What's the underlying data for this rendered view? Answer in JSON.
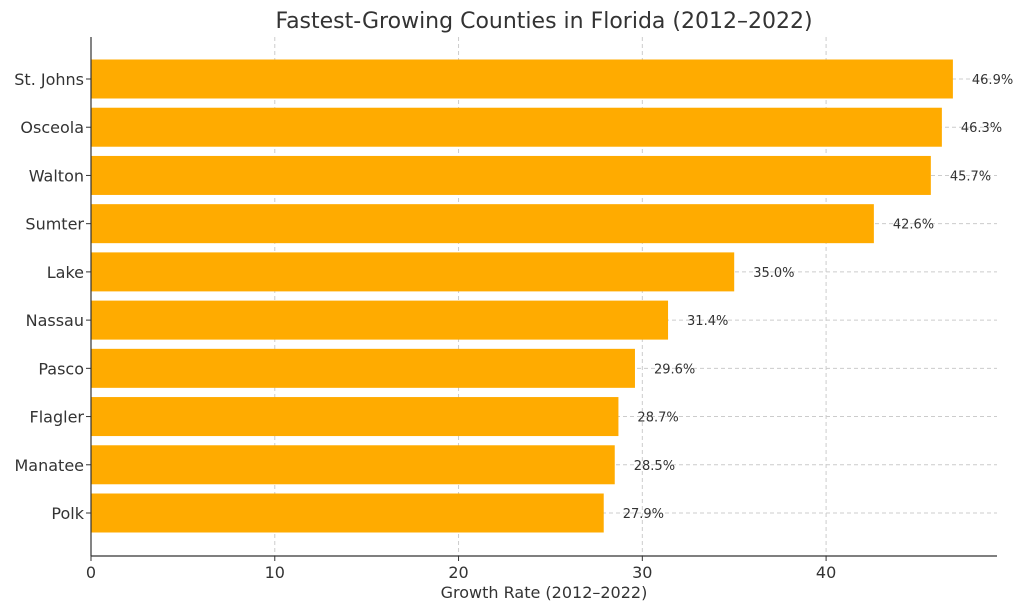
{
  "chart_data": {
    "type": "bar",
    "orientation": "horizontal",
    "title": "Fastest-Growing Counties in Florida (2012–2022)",
    "xlabel": "Growth Rate (2012–2022)",
    "ylabel": "",
    "categories": [
      "St. Johns",
      "Osceola",
      "Walton",
      "Sumter",
      "Lake",
      "Nassau",
      "Pasco",
      "Flagler",
      "Manatee",
      "Polk"
    ],
    "values": [
      46.9,
      46.3,
      45.7,
      42.6,
      35.0,
      31.4,
      29.6,
      28.7,
      28.5,
      27.9
    ],
    "data_labels": [
      "46.9%",
      "46.3%",
      "45.7%",
      "42.6%",
      "35.0%",
      "31.4%",
      "29.6%",
      "28.7%",
      "28.5%",
      "27.9%"
    ],
    "xlim": [
      0,
      49.3
    ],
    "xticks": [
      0,
      10,
      20,
      30,
      40
    ],
    "grid": true,
    "bar_color": "#FFAB00"
  }
}
